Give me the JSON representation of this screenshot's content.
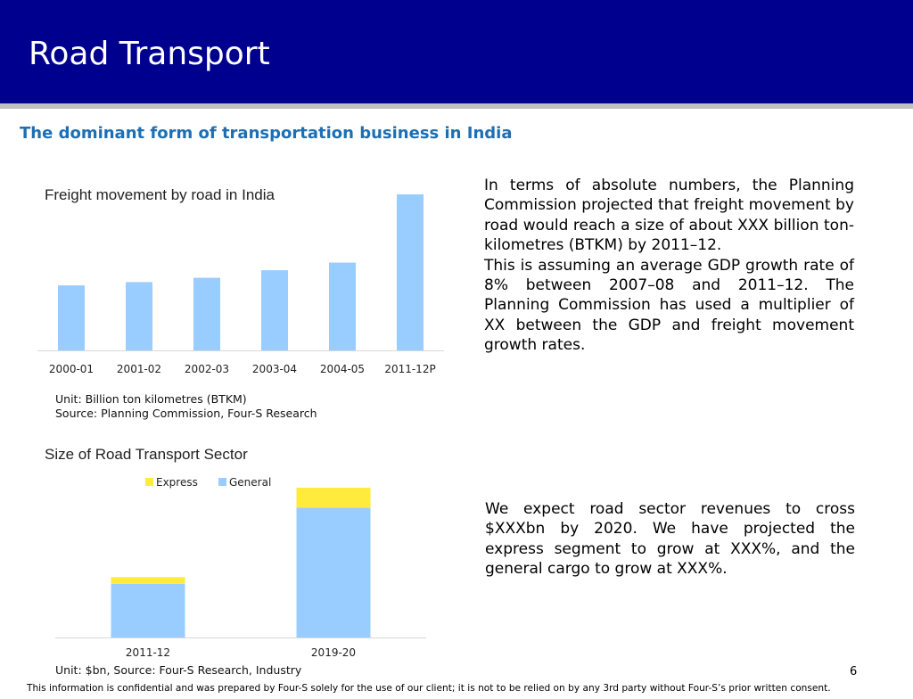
{
  "slide": {
    "title": "Road Transport",
    "subtitle": "The dominant form of transportation business in India",
    "page_number": "6",
    "footer": "This information is confidential and was prepared by Four-S solely for the use of our client; it is not to be relied on by any 3rd party without Four-S’s prior written consent."
  },
  "chart_data": [
    {
      "type": "bar",
      "title": "Freight movement by road in India",
      "categories": [
        "2000-01",
        "2001-02",
        "2002-03",
        "2003-04",
        "2004-05",
        "2011-12P"
      ],
      "values": [
        300,
        315,
        335,
        370,
        405,
        720
      ],
      "ylim": [
        0,
        720
      ],
      "color": "#99ccff",
      "xlabel": "",
      "ylabel": "",
      "grid": false
    },
    {
      "type": "bar",
      "stacked": true,
      "title": "Size of Road Transport Sector",
      "categories": [
        "2011-12",
        "2019-20"
      ],
      "series": [
        {
          "name": "General",
          "values": [
            12,
            29
          ],
          "color": "#99ccff"
        },
        {
          "name": "Express",
          "values": [
            1.5,
            4.5
          ],
          "color": "#ffeb3b"
        }
      ],
      "legend": [
        "Express",
        "General"
      ],
      "legend_position": "top",
      "ylim": [
        0,
        33.5
      ],
      "grid": false
    }
  ],
  "notes": {
    "chart1_unit": "Unit: Billion ton kilometres (BTKM)",
    "chart1_source": "Source: Planning Commission, Four-S Research",
    "chart2_unit": "Unit: $bn, Source: Four-S Research, Industry"
  },
  "text": {
    "para1": "In terms of absolute numbers, the Planning Commission projected that freight movement by road would reach a size of about XXX billion ton-kilometres (BTKM) by 2011–12.",
    "para2": "This is assuming an average GDP growth rate of 8% between 2007–08 and 2011–12. The Planning Commission has used a multiplier of XX between the GDP and freight movement growth rates.",
    "para3": "We expect road sector revenues to cross $XXXbn by 2020. We have projected the express segment to grow at XXX%, and the general cargo to grow at XXX%."
  }
}
